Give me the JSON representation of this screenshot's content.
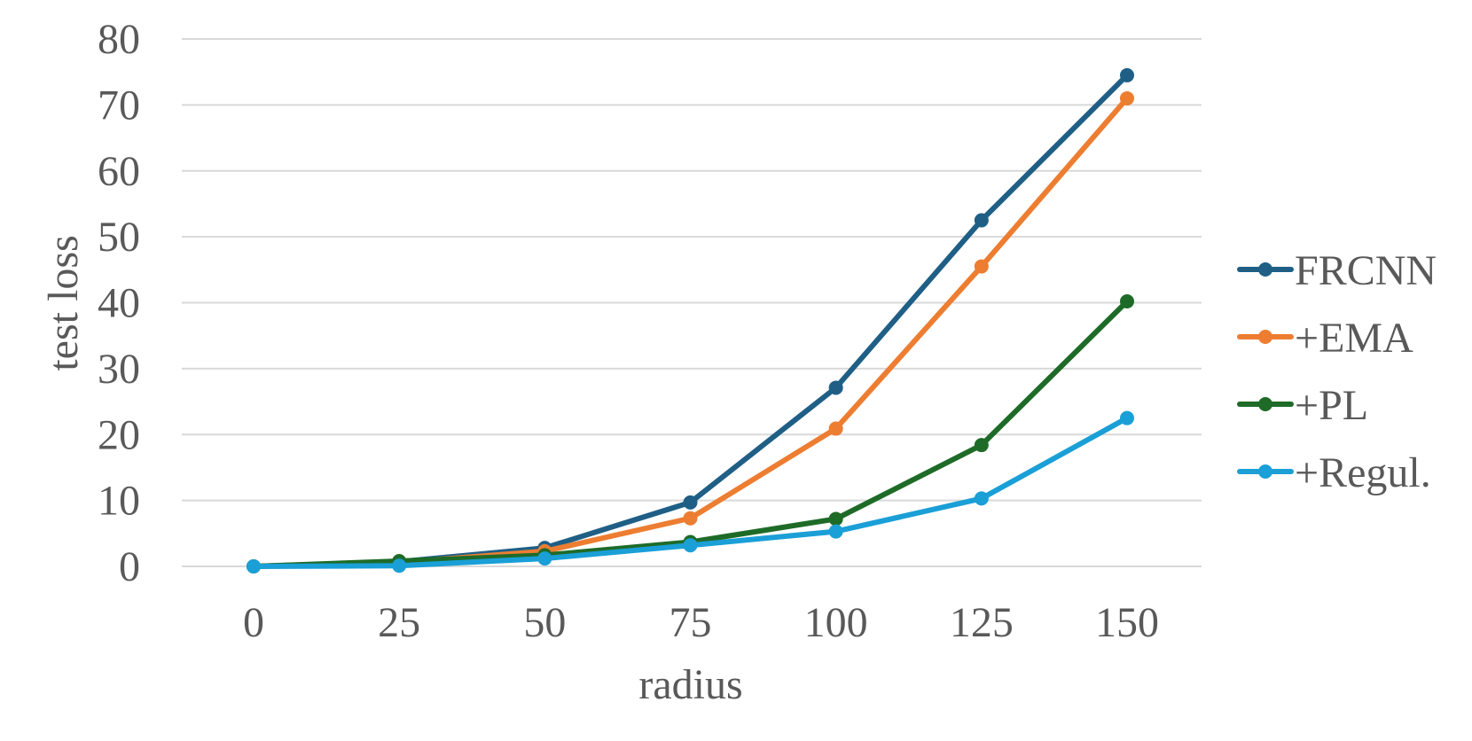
{
  "chart_data": {
    "type": "line",
    "title": "",
    "xlabel": "radius",
    "ylabel": "test loss",
    "x": [
      0,
      25,
      50,
      75,
      100,
      125,
      150
    ],
    "x_tick_labels": [
      "0",
      "25",
      "50",
      "75",
      "100",
      "125",
      "150"
    ],
    "ylim": [
      0,
      80
    ],
    "y_ticks": [
      0,
      10,
      20,
      30,
      40,
      50,
      60,
      70,
      80
    ],
    "y_tick_labels": [
      "0",
      "10",
      "20",
      "30",
      "40",
      "50",
      "60",
      "70",
      "80"
    ],
    "grid": true,
    "legend_position": "right",
    "series": [
      {
        "name": "FRCNN",
        "color": "#1f5f86",
        "values": [
          0,
          0.7,
          2.8,
          9.7,
          27.1,
          52.5,
          74.5
        ]
      },
      {
        "name": "+EMA",
        "color": "#ed7d31",
        "values": [
          0,
          0.6,
          2.3,
          7.3,
          20.9,
          45.5,
          71.0
        ]
      },
      {
        "name": "+PL",
        "color": "#1e6b28",
        "values": [
          0,
          0.8,
          1.7,
          3.7,
          7.2,
          18.4,
          40.2
        ]
      },
      {
        "name": "+Regul.",
        "color": "#1a9fd7",
        "values": [
          0,
          0.1,
          1.2,
          3.2,
          5.3,
          10.3,
          22.5
        ]
      }
    ]
  }
}
